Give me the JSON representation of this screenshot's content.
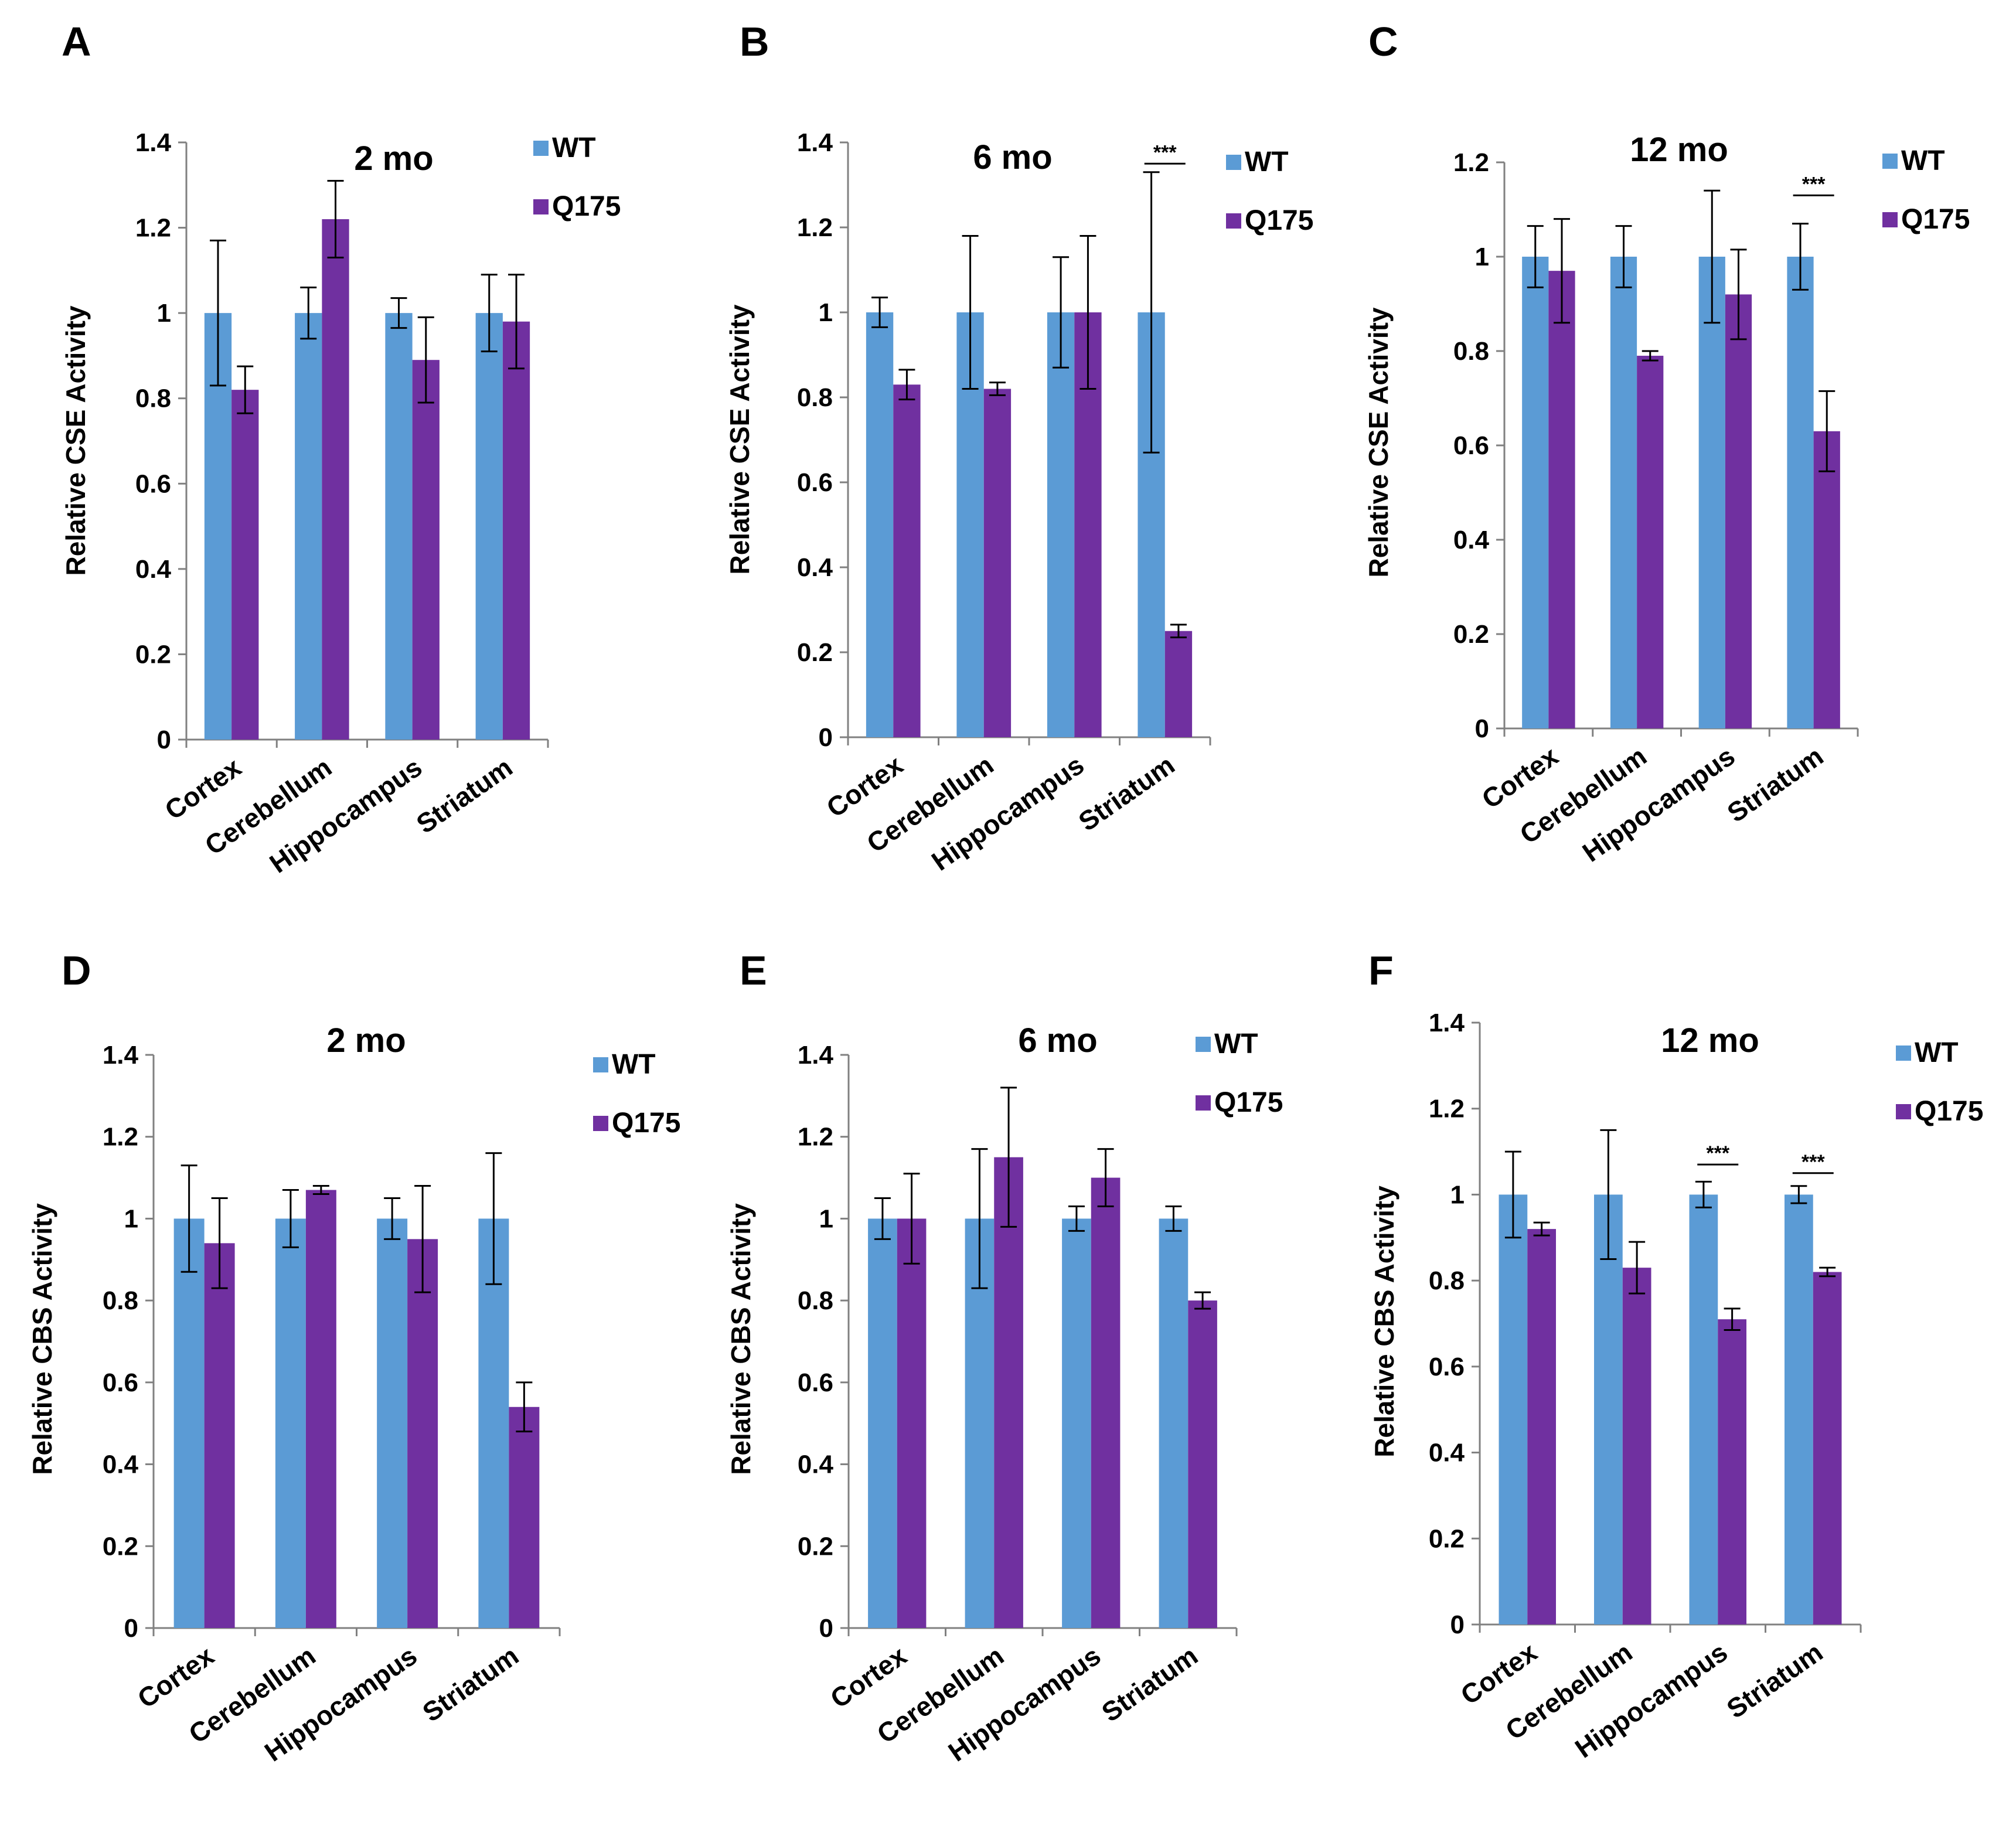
{
  "colors": {
    "wt": "#5b9bd5",
    "q175": "#7030a0",
    "axis": "#808080",
    "error": "#000000"
  },
  "chart_data": [
    {
      "panel": "A",
      "type": "bar",
      "title": "2 mo",
      "ylabel": "Relative CSE Activity",
      "xlabel": "",
      "ylim": [
        0,
        1.4
      ],
      "yticks": [
        0,
        0.2,
        0.4,
        0.6,
        0.8,
        1,
        1.2,
        1.4
      ],
      "categories": [
        "Cortex",
        "Cerebellum",
        "Hippocampus",
        "Striatum"
      ],
      "legend": "right",
      "series": [
        {
          "name": "WT",
          "values": [
            1.0,
            1.0,
            1.0,
            1.0
          ],
          "errors": [
            0.17,
            0.06,
            0.035,
            0.09
          ]
        },
        {
          "name": "Q175",
          "values": [
            0.82,
            1.22,
            0.89,
            0.98
          ],
          "errors": [
            0.055,
            0.09,
            0.1,
            0.11
          ]
        }
      ],
      "significance": []
    },
    {
      "panel": "B",
      "type": "bar",
      "title": "6 mo",
      "ylabel": "Relative CSE Activity",
      "xlabel": "",
      "ylim": [
        0,
        1.4
      ],
      "yticks": [
        0,
        0.2,
        0.4,
        0.6,
        0.8,
        1,
        1.2,
        1.4
      ],
      "categories": [
        "Cortex",
        "Cerebellum",
        "Hippocampus",
        "Striatum"
      ],
      "legend": "right",
      "series": [
        {
          "name": "WT",
          "values": [
            1.0,
            1.0,
            1.0,
            1.0
          ],
          "errors": [
            0.035,
            0.18,
            0.13,
            0.33
          ]
        },
        {
          "name": "Q175",
          "values": [
            0.83,
            0.82,
            1.0,
            0.25
          ],
          "errors": [
            0.035,
            0.015,
            0.18,
            0.015
          ]
        }
      ],
      "significance": [
        {
          "category": 3,
          "label": "***",
          "y": 1.35
        }
      ]
    },
    {
      "panel": "C",
      "type": "bar",
      "title": "12 mo",
      "ylabel": "Relative CSE Activity",
      "xlabel": "",
      "ylim": [
        0,
        1.2
      ],
      "yticks": [
        0,
        0.2,
        0.4,
        0.6,
        0.8,
        1,
        1.2
      ],
      "categories": [
        "Cortex",
        "Cerebellum",
        "Hippocampus",
        "Striatum"
      ],
      "legend": "right",
      "series": [
        {
          "name": "WT",
          "values": [
            1.0,
            1.0,
            1.0,
            1.0
          ],
          "errors": [
            0.065,
            0.065,
            0.14,
            0.07
          ]
        },
        {
          "name": "Q175",
          "values": [
            0.97,
            0.79,
            0.92,
            0.63
          ],
          "errors": [
            0.11,
            0.01,
            0.095,
            0.085
          ]
        }
      ],
      "significance": [
        {
          "category": 3,
          "label": "***",
          "y": 1.13
        }
      ]
    },
    {
      "panel": "D",
      "type": "bar",
      "title": "2 mo",
      "ylabel": "Relative CBS Activity",
      "xlabel": "",
      "ylim": [
        0,
        1.4
      ],
      "yticks": [
        0,
        0.2,
        0.4,
        0.6,
        0.8,
        1,
        1.2,
        1.4
      ],
      "categories": [
        "Cortex",
        "Cerebellum",
        "Hippocampus",
        "Striatum"
      ],
      "legend": "right",
      "series": [
        {
          "name": "WT",
          "values": [
            1.0,
            1.0,
            1.0,
            1.0
          ],
          "errors": [
            0.13,
            0.07,
            0.05,
            0.16
          ]
        },
        {
          "name": "Q175",
          "values": [
            0.94,
            1.07,
            0.95,
            0.54
          ],
          "errors": [
            0.11,
            0.01,
            0.13,
            0.06
          ]
        }
      ],
      "significance": []
    },
    {
      "panel": "E",
      "type": "bar",
      "title": "6 mo",
      "ylabel": "Relative CBS Activity",
      "xlabel": "",
      "ylim": [
        0,
        1.4
      ],
      "yticks": [
        0,
        0.2,
        0.4,
        0.6,
        0.8,
        1,
        1.2,
        1.4
      ],
      "categories": [
        "Cortex",
        "Cerebellum",
        "Hippocampus",
        "Striatum"
      ],
      "legend": "right",
      "series": [
        {
          "name": "WT",
          "values": [
            1.0,
            1.0,
            1.0,
            1.0
          ],
          "errors": [
            0.05,
            0.17,
            0.03,
            0.03
          ]
        },
        {
          "name": "Q175",
          "values": [
            1.0,
            1.15,
            1.1,
            0.8
          ],
          "errors": [
            0.11,
            0.17,
            0.07,
            0.02
          ]
        }
      ],
      "significance": []
    },
    {
      "panel": "F",
      "type": "bar",
      "title": "12 mo",
      "ylabel": "Relative CBS Activity",
      "xlabel": "",
      "ylim": [
        0,
        1.4
      ],
      "yticks": [
        0,
        0.2,
        0.4,
        0.6,
        0.8,
        1,
        1.2,
        1.4
      ],
      "categories": [
        "Cortex",
        "Cerebellum",
        "Hippocampus",
        "Striatum"
      ],
      "legend": "right",
      "series": [
        {
          "name": "WT",
          "values": [
            1.0,
            1.0,
            1.0,
            1.0
          ],
          "errors": [
            0.1,
            0.15,
            0.03,
            0.02
          ]
        },
        {
          "name": "Q175",
          "values": [
            0.92,
            0.83,
            0.71,
            0.82
          ],
          "errors": [
            0.015,
            0.06,
            0.025,
            0.01
          ]
        }
      ],
      "significance": [
        {
          "category": 2,
          "label": "***",
          "y": 1.07
        },
        {
          "category": 3,
          "label": "***",
          "y": 1.05
        }
      ]
    }
  ]
}
